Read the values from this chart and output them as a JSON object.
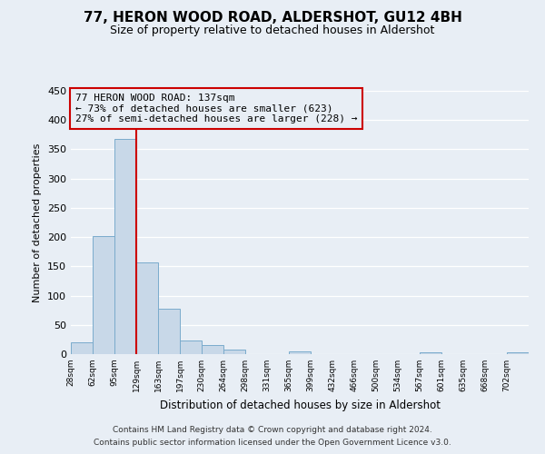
{
  "title": "77, HERON WOOD ROAD, ALDERSHOT, GU12 4BH",
  "subtitle": "Size of property relative to detached houses in Aldershot",
  "xlabel": "Distribution of detached houses by size in Aldershot",
  "ylabel": "Number of detached properties",
  "bin_labels": [
    "28sqm",
    "62sqm",
    "95sqm",
    "129sqm",
    "163sqm",
    "197sqm",
    "230sqm",
    "264sqm",
    "298sqm",
    "331sqm",
    "365sqm",
    "399sqm",
    "432sqm",
    "466sqm",
    "500sqm",
    "534sqm",
    "567sqm",
    "601sqm",
    "635sqm",
    "668sqm",
    "702sqm"
  ],
  "bar_heights": [
    20,
    201,
    367,
    156,
    78,
    23,
    15,
    7,
    0,
    0,
    5,
    0,
    0,
    0,
    0,
    0,
    3,
    0,
    0,
    0,
    3
  ],
  "bar_color": "#c8d8e8",
  "bar_edge_color": "#7aabcc",
  "vline_color": "#cc0000",
  "vline_index": 3,
  "annotation_title": "77 HERON WOOD ROAD: 137sqm",
  "annotation_line1": "← 73% of detached houses are smaller (623)",
  "annotation_line2": "27% of semi-detached houses are larger (228) →",
  "annotation_box_color": "#cc0000",
  "ylim": [
    0,
    450
  ],
  "yticks": [
    0,
    50,
    100,
    150,
    200,
    250,
    300,
    350,
    400,
    450
  ],
  "footer_line1": "Contains HM Land Registry data © Crown copyright and database right 2024.",
  "footer_line2": "Contains public sector information licensed under the Open Government Licence v3.0.",
  "bg_color": "#e8eef5",
  "grid_color": "#ffffff",
  "title_fontsize": 11,
  "subtitle_fontsize": 9
}
